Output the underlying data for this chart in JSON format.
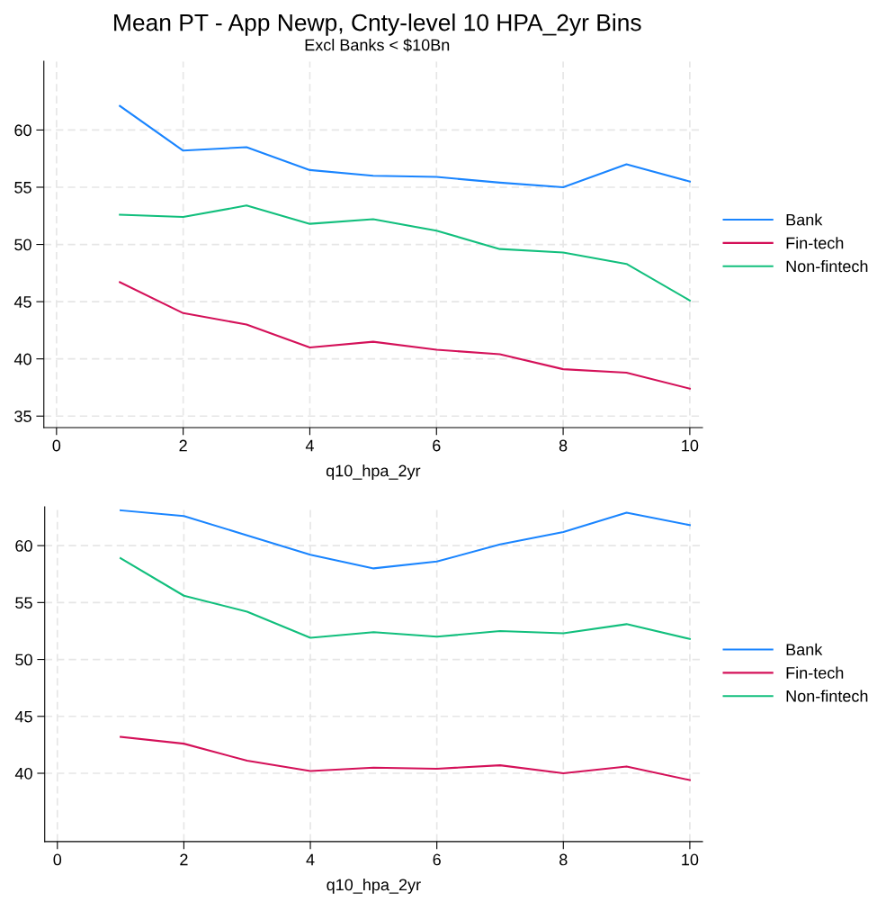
{
  "chart_data": [
    {
      "type": "line",
      "title": "Mean PT - App Newp, Cnty-level 10 HPA_2yr Bins",
      "subtitle": "Excl Banks < $10Bn",
      "xlabel": "q10_hpa_2yr",
      "x": [
        1,
        2,
        3,
        4,
        5,
        6,
        7,
        8,
        9,
        10
      ],
      "series": [
        {
          "name": "Bank",
          "color": "#1a85ff",
          "values": [
            62.1,
            58.2,
            58.5,
            56.5,
            56.0,
            55.9,
            55.4,
            55.0,
            57.0,
            55.5
          ]
        },
        {
          "name": "Fin-tech",
          "color": "#d41159",
          "values": [
            46.7,
            44.0,
            43.0,
            41.0,
            41.5,
            40.8,
            40.4,
            39.1,
            38.8,
            37.4
          ]
        },
        {
          "name": "Non-fintech",
          "color": "#12bf7d",
          "values": [
            52.6,
            52.4,
            53.4,
            51.8,
            52.2,
            51.2,
            49.6,
            49.3,
            48.3,
            45.1
          ]
        }
      ],
      "xlim": [
        -0.2,
        10.2
      ],
      "xticks": [
        0,
        2,
        4,
        6,
        8,
        10
      ],
      "ylim": [
        34,
        66
      ],
      "yticks": [
        35,
        40,
        45,
        50,
        55,
        60
      ],
      "grid": true,
      "legend": "right",
      "line_style": "solid",
      "marker": "none"
    },
    {
      "type": "line",
      "xlabel": "q10_hpa_2yr",
      "x": [
        1,
        2,
        3,
        4,
        5,
        6,
        7,
        8,
        9,
        10
      ],
      "series": [
        {
          "name": "Bank",
          "color": "#1a85ff",
          "values": [
            63.1,
            62.6,
            60.9,
            59.2,
            58.0,
            58.6,
            60.1,
            61.2,
            62.9,
            61.8
          ]
        },
        {
          "name": "Fin-tech",
          "color": "#d41159",
          "values": [
            43.2,
            42.6,
            41.1,
            40.2,
            40.5,
            40.4,
            40.7,
            40.0,
            40.6,
            39.4
          ]
        },
        {
          "name": "Non-fintech",
          "color": "#12bf7d",
          "values": [
            58.9,
            55.6,
            54.2,
            51.9,
            52.4,
            52.0,
            52.5,
            52.3,
            53.1,
            51.8
          ]
        }
      ],
      "xlim": [
        -0.2,
        10.2
      ],
      "xticks": [
        0,
        2,
        4,
        6,
        8,
        10
      ],
      "ylim": [
        34,
        63.4
      ],
      "yticks": [
        40,
        45,
        50,
        55,
        60
      ],
      "grid": true,
      "legend": "right",
      "line_style": "solid",
      "marker": "none"
    }
  ]
}
